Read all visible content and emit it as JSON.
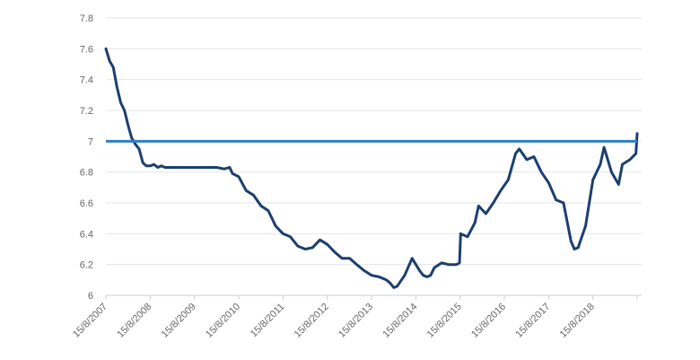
{
  "chart_data": {
    "type": "line",
    "title": "",
    "xlabel": "",
    "ylabel": "",
    "ylim": [
      6,
      7.8
    ],
    "yticks": [
      "7.8",
      "7.6",
      "7.4",
      "7.2",
      "7",
      "6.8",
      "6.6",
      "6.4",
      "6.2",
      "6"
    ],
    "xticks": [
      "15/8/2007",
      "15/8/2008",
      "15/8/2009",
      "15/8/2010",
      "15/8/2011",
      "15/8/2012",
      "15/8/2013",
      "15/8/2014",
      "15/8/2015",
      "15/8/2016",
      "15/8/2017",
      "15/8/2018"
    ],
    "grid": "horizontal",
    "legend": "none",
    "reference_line": {
      "y": 7.0,
      "color": "#2f7ec8"
    },
    "colors": {
      "series": "#1b3f6e",
      "reference": "#2f7ec8"
    },
    "series": [
      {
        "x": [
          "2007-08-15",
          "2007-09-15",
          "2007-10-15",
          "2007-11-15",
          "2007-12-15",
          "2008-01-15",
          "2008-02-15",
          "2008-03-15",
          "2008-04-15",
          "2008-05-15",
          "2008-06-15",
          "2008-07-15",
          "2008-08-15",
          "2008-09-15",
          "2008-10-15",
          "2008-11-15",
          "2008-12-15",
          "2009-02-15",
          "2009-04-15",
          "2009-06-15",
          "2009-08-15",
          "2009-10-15",
          "2009-12-15",
          "2010-02-15",
          "2010-04-15",
          "2010-06-01",
          "2010-06-25",
          "2010-08-15",
          "2010-10-15",
          "2010-12-15",
          "2011-02-15",
          "2011-04-15",
          "2011-06-15",
          "2011-08-15",
          "2011-10-15",
          "2011-12-15",
          "2012-02-15",
          "2012-04-15",
          "2012-06-15",
          "2012-08-15",
          "2012-10-15",
          "2012-12-15",
          "2013-02-15",
          "2013-04-15",
          "2013-06-15",
          "2013-08-15",
          "2013-10-15",
          "2013-12-15",
          "2014-01-15",
          "2014-02-15",
          "2014-03-15",
          "2014-05-15",
          "2014-07-15",
          "2014-08-15",
          "2014-09-15",
          "2014-10-15",
          "2014-11-15",
          "2014-12-15",
          "2015-01-15",
          "2015-03-15",
          "2015-05-15",
          "2015-07-15",
          "2015-08-10",
          "2015-08-20",
          "2015-10-15",
          "2015-12-15",
          "2016-01-15",
          "2016-03-15",
          "2016-05-15",
          "2016-07-15",
          "2016-09-15",
          "2016-11-15",
          "2016-12-15",
          "2017-02-15",
          "2017-04-15",
          "2017-06-15",
          "2017-08-15",
          "2017-10-15",
          "2017-12-15",
          "2018-02-15",
          "2018-03-15",
          "2018-04-15",
          "2018-06-15",
          "2018-08-15",
          "2018-10-15",
          "2018-11-15",
          "2019-01-15",
          "2019-03-15",
          "2019-04-15",
          "2019-06-15",
          "2019-08-05",
          "2019-08-15"
        ],
        "y": [
          7.6,
          7.52,
          7.48,
          7.35,
          7.25,
          7.2,
          7.1,
          7.02,
          6.98,
          6.95,
          6.86,
          6.84,
          6.84,
          6.85,
          6.83,
          6.84,
          6.83,
          6.83,
          6.83,
          6.83,
          6.83,
          6.83,
          6.83,
          6.83,
          6.82,
          6.83,
          6.79,
          6.77,
          6.68,
          6.65,
          6.58,
          6.55,
          6.45,
          6.4,
          6.38,
          6.32,
          6.3,
          6.31,
          6.36,
          6.33,
          6.28,
          6.24,
          6.24,
          6.2,
          6.16,
          6.13,
          6.12,
          6.1,
          6.08,
          6.05,
          6.06,
          6.13,
          6.24,
          6.2,
          6.16,
          6.13,
          6.12,
          6.13,
          6.18,
          6.21,
          6.2,
          6.2,
          6.21,
          6.4,
          6.38,
          6.47,
          6.58,
          6.53,
          6.6,
          6.68,
          6.75,
          6.92,
          6.95,
          6.88,
          6.9,
          6.8,
          6.73,
          6.62,
          6.6,
          6.35,
          6.3,
          6.31,
          6.45,
          6.75,
          6.85,
          6.96,
          6.8,
          6.72,
          6.85,
          6.88,
          6.92,
          7.05
        ]
      }
    ]
  }
}
